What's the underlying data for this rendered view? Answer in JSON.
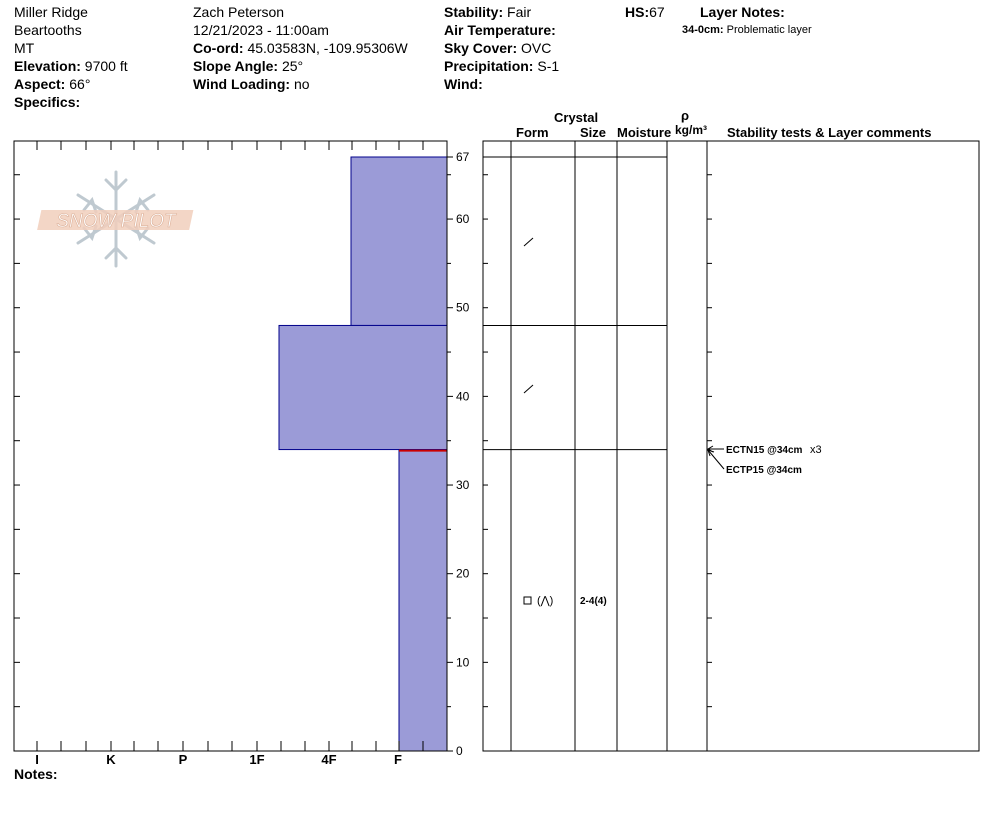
{
  "header": {
    "location": "Miller Ridge",
    "range": "Beartooths",
    "state": "MT",
    "elevation_label": "Elevation:",
    "elevation_value": "9700 ft",
    "aspect_label": "Aspect:",
    "aspect_value": "66°",
    "specifics_label": "Specifics:",
    "observer": "Zach Peterson",
    "datetime": "12/21/2023 - 11:00am",
    "coord_label": "Co-ord:",
    "coord_value": "45.03583N, -109.95306W",
    "slope_label": "Slope Angle:",
    "slope_value": "25°",
    "wind_loading_label": "Wind Loading:",
    "wind_loading_value": "no",
    "stability_label": "Stability:",
    "stability_value": "Fair",
    "air_temp_label": "Air Temperature:",
    "sky_label": "Sky Cover:",
    "sky_value": "OVC",
    "precip_label": "Precipitation:",
    "precip_value": "S-1",
    "wind_label": "Wind:",
    "hs_label": "HS:",
    "hs_value": "67",
    "layer_notes_label": "Layer Notes:",
    "layer_note_depth": "34-0cm:",
    "layer_note_text": "Problematic layer"
  },
  "logo": {
    "text": "SNOW PILOT"
  },
  "columns": {
    "crystal": "Crystal",
    "form": "Form",
    "size": "Size",
    "moisture": "Moisture",
    "rho": "ρ",
    "density_unit": "kg/m³",
    "stability_comments": "Stability tests & Layer comments"
  },
  "crystal_rows": [
    {
      "form": "/"
    },
    {
      "form": "/"
    },
    {
      "form": "□ (⋀)",
      "size": "2-4(4)"
    }
  ],
  "stability_tests": [
    {
      "text": "ECTN15 @34cm",
      "count": "x3"
    },
    {
      "text": "ECTP15 @34cm"
    }
  ],
  "notes_label": "Notes:",
  "chart_data": {
    "type": "bar",
    "description_axes": {
      "y_label": "",
      "y_range": [
        0,
        67
      ],
      "y_ticks": [
        "0",
        "10",
        "20",
        "30",
        "40",
        "50",
        "60",
        "67"
      ],
      "x_hardness_ticks": [
        "I",
        "K",
        "P",
        "1F",
        "4F",
        "F"
      ]
    },
    "hardness_layers": [
      {
        "bottom": 48,
        "top": 67,
        "hardness": "4F"
      },
      {
        "bottom": 34,
        "top": 48,
        "hardness": "1F"
      },
      {
        "bottom": 0,
        "top": 34,
        "hardness": "F"
      }
    ],
    "layer_boundaries": [
      67,
      48,
      34
    ],
    "problem_layer_depth": 34,
    "colors": {
      "fill": "#9b9bd7",
      "outline": "#00008b",
      "problem": "#cc0000"
    }
  }
}
